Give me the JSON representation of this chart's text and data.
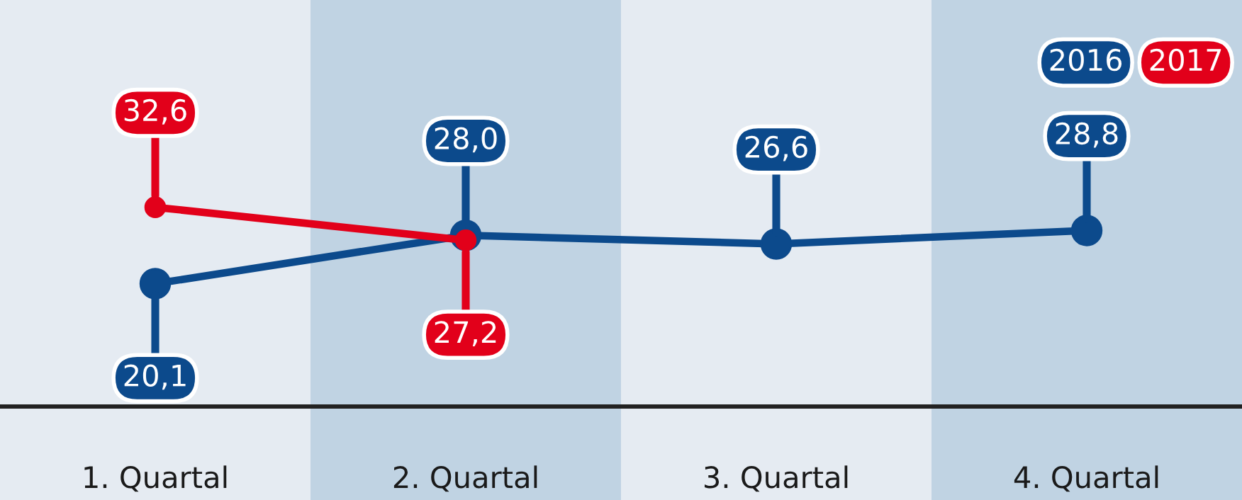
{
  "chart_data": {
    "type": "line",
    "categories": [
      "1. Quartal",
      "2. Quartal",
      "3. Quartal",
      "4. Quartal"
    ],
    "series": [
      {
        "name": "2016",
        "color": "#0c4a8c",
        "values": [
          20.1,
          28.0,
          26.6,
          28.8
        ],
        "value_labels": [
          "20,1",
          "28,0",
          "26,6",
          "28,8"
        ]
      },
      {
        "name": "2017",
        "color": "#e2001a",
        "values": [
          32.6,
          27.2,
          null,
          null
        ],
        "value_labels": [
          "32,6",
          "27,2",
          null,
          null
        ]
      }
    ],
    "colors": [
      "#e5ebf2",
      "#c0d3e3",
      "#e5ebf2",
      "#c0d3e3"
    ],
    "marker": "circle",
    "line_style": "solid",
    "grid": false,
    "legend": "top right"
  }
}
